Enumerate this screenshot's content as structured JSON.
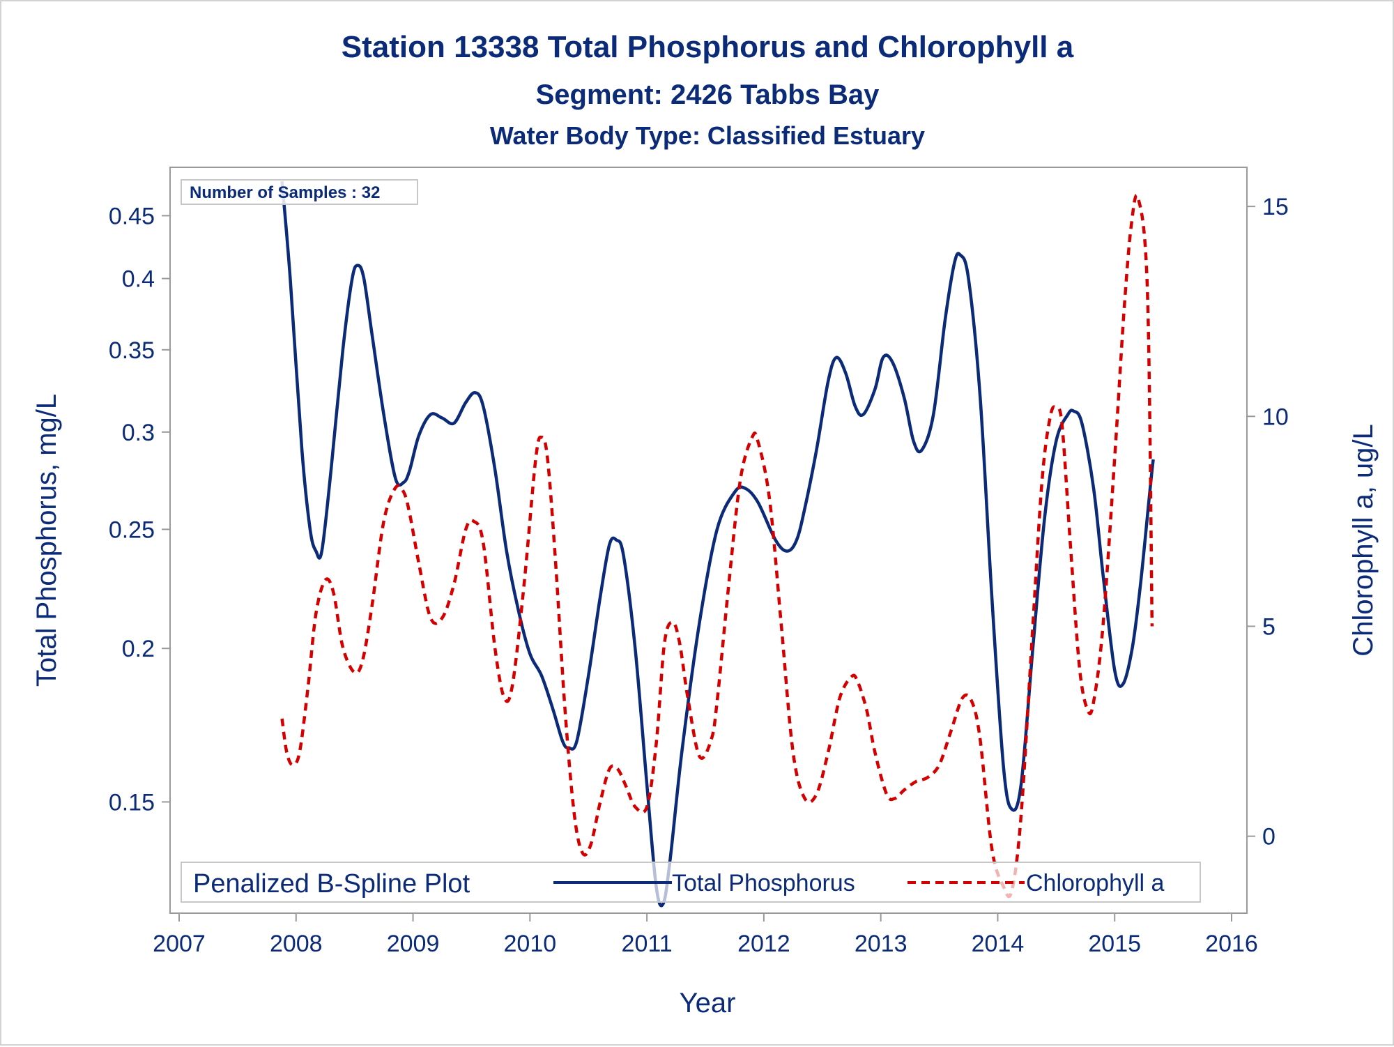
{
  "chart_data": {
    "type": "line",
    "title": "Station 13338  Total Phosphorus and Chlorophyll a",
    "subtitle": "Segment: 2426  Tabbs Bay",
    "subtitle2": "Water Body Type: Classified Estuary",
    "xlabel": "Year",
    "ylabel_left": "Total Phosphorus, mg/L",
    "ylabel_right": "Chlorophyll a, ug/L",
    "x_ticks": [
      2007,
      2008,
      2009,
      2010,
      2011,
      2012,
      2013,
      2014,
      2015,
      2016
    ],
    "x_tick_labels": [
      "2007",
      "2008",
      "2009",
      "2010",
      "2011",
      "2012",
      "2013",
      "2014",
      "2015",
      "2016"
    ],
    "xlim": [
      2007,
      2016
    ],
    "y_left_scale": "log",
    "y_left_ticks": [
      0.15,
      0.2,
      0.25,
      0.3,
      0.35,
      0.4,
      0.45
    ],
    "y_left_tick_labels": [
      "0.15",
      "0.2",
      "0.25",
      "0.3",
      "0.35",
      "0.4",
      "0.45"
    ],
    "y_left_lim": [
      0.125,
      0.48
    ],
    "y_right_ticks": [
      0,
      5,
      10,
      15
    ],
    "y_right_tick_labels": [
      "0",
      "5",
      "10",
      "15"
    ],
    "y_right_lim": [
      -1.5,
      15.6
    ],
    "annotation": "Number of Samples : 32",
    "legend": {
      "title": "Penalized B-Spline Plot",
      "placement": "bottom-inside",
      "entries": [
        "Total Phosphorus",
        "Chlorophyll a"
      ]
    },
    "colors": {
      "total_phosphorus": "#0b2a78",
      "chlorophyll_a": "#d40000",
      "text": "#0b2a78",
      "axis": "#9a9a9a"
    },
    "series": [
      {
        "name": "Total Phosphorus",
        "axis": "left",
        "style": "solid",
        "x": [
          2007.88,
          2007.95,
          2008.05,
          2008.12,
          2008.17,
          2008.22,
          2008.3,
          2008.4,
          2008.48,
          2008.53,
          2008.58,
          2008.65,
          2008.75,
          2008.85,
          2008.92,
          2008.97,
          2009.05,
          2009.15,
          2009.25,
          2009.35,
          2009.45,
          2009.53,
          2009.6,
          2009.7,
          2009.8,
          2009.9,
          2010.0,
          2010.1,
          2010.2,
          2010.28,
          2010.33,
          2010.4,
          2010.5,
          2010.6,
          2010.68,
          2010.74,
          2010.8,
          2010.9,
          2011.0,
          2011.08,
          2011.14,
          2011.2,
          2011.3,
          2011.45,
          2011.6,
          2011.75,
          2011.84,
          2011.95,
          2012.1,
          2012.2,
          2012.28,
          2012.35,
          2012.45,
          2012.55,
          2012.62,
          2012.7,
          2012.78,
          2012.85,
          2012.95,
          2013.02,
          2013.1,
          2013.2,
          2013.28,
          2013.35,
          2013.45,
          2013.55,
          2013.63,
          2013.68,
          2013.75,
          2013.85,
          2013.95,
          2014.05,
          2014.12,
          2014.2,
          2014.3,
          2014.4,
          2014.5,
          2014.6,
          2014.65,
          2014.72,
          2014.82,
          2014.9,
          2015.0,
          2015.07,
          2015.15,
          2015.22,
          2015.3,
          2015.33
        ],
        "values": [
          0.48,
          0.4,
          0.29,
          0.25,
          0.24,
          0.24,
          0.28,
          0.35,
          0.4,
          0.41,
          0.4,
          0.36,
          0.31,
          0.275,
          0.273,
          0.279,
          0.298,
          0.31,
          0.308,
          0.305,
          0.317,
          0.323,
          0.315,
          0.28,
          0.24,
          0.215,
          0.198,
          0.19,
          0.178,
          0.168,
          0.166,
          0.168,
          0.19,
          0.22,
          0.243,
          0.245,
          0.238,
          0.2,
          0.155,
          0.128,
          0.124,
          0.135,
          0.165,
          0.21,
          0.25,
          0.268,
          0.27,
          0.263,
          0.245,
          0.24,
          0.245,
          0.26,
          0.29,
          0.33,
          0.345,
          0.335,
          0.315,
          0.31,
          0.325,
          0.345,
          0.342,
          0.32,
          0.295,
          0.29,
          0.31,
          0.37,
          0.412,
          0.418,
          0.4,
          0.32,
          0.22,
          0.16,
          0.148,
          0.155,
          0.2,
          0.255,
          0.295,
          0.31,
          0.312,
          0.305,
          0.27,
          0.23,
          0.192,
          0.187,
          0.2,
          0.225,
          0.268,
          0.285
        ]
      },
      {
        "name": "Chlorophyll a",
        "axis": "right",
        "style": "dashed",
        "x": [
          2007.88,
          2007.92,
          2007.97,
          2008.03,
          2008.1,
          2008.17,
          2008.25,
          2008.32,
          2008.4,
          2008.5,
          2008.57,
          2008.65,
          2008.75,
          2008.85,
          2008.92,
          2008.97,
          2009.05,
          2009.15,
          2009.25,
          2009.35,
          2009.45,
          2009.52,
          2009.6,
          2009.7,
          2009.78,
          2009.85,
          2009.95,
          2010.05,
          2010.1,
          2010.15,
          2010.22,
          2010.3,
          2010.38,
          2010.45,
          2010.52,
          2010.6,
          2010.68,
          2010.75,
          2010.82,
          2010.9,
          2011.0,
          2011.08,
          2011.15,
          2011.22,
          2011.28,
          2011.35,
          2011.45,
          2011.55,
          2011.6,
          2011.7,
          2011.8,
          2011.9,
          2011.95,
          2012.05,
          2012.15,
          2012.25,
          2012.35,
          2012.45,
          2012.55,
          2012.65,
          2012.75,
          2012.8,
          2012.88,
          2012.95,
          2013.05,
          2013.12,
          2013.2,
          2013.3,
          2013.4,
          2013.5,
          2013.6,
          2013.7,
          2013.78,
          2013.85,
          2013.95,
          2014.05,
          2014.12,
          2014.2,
          2014.3,
          2014.38,
          2014.45,
          2014.5,
          2014.55,
          2014.62,
          2014.7,
          2014.77,
          2014.82,
          2014.9,
          2015.0,
          2015.08,
          2015.14,
          2015.2,
          2015.28,
          2015.32
        ],
        "values": [
          2.8,
          2.0,
          1.7,
          2.0,
          3.5,
          5.3,
          6.1,
          5.8,
          4.5,
          3.9,
          4.2,
          5.5,
          7.5,
          8.3,
          8.2,
          7.7,
          6.5,
          5.2,
          5.2,
          6.0,
          7.3,
          7.5,
          7.0,
          4.5,
          3.3,
          3.6,
          6.0,
          9.0,
          9.5,
          9.0,
          6.5,
          3.0,
          0.5,
          -0.4,
          -0.2,
          0.8,
          1.6,
          1.6,
          1.2,
          0.7,
          0.7,
          2.2,
          4.6,
          5.1,
          4.6,
          3.3,
          1.9,
          2.3,
          3.2,
          6.0,
          8.5,
          9.5,
          9.4,
          8.0,
          5.0,
          2.0,
          0.9,
          1.0,
          2.0,
          3.3,
          3.8,
          3.7,
          3.0,
          2.0,
          1.0,
          0.9,
          1.1,
          1.3,
          1.4,
          1.7,
          2.5,
          3.3,
          3.2,
          2.3,
          -0.3,
          -1.2,
          -1.3,
          0.5,
          5.0,
          8.5,
          10.0,
          10.2,
          9.8,
          7.0,
          4.0,
          3.0,
          3.2,
          5.0,
          9.0,
          12.5,
          14.5,
          15.2,
          13.0,
          5.0
        ]
      }
    ]
  }
}
